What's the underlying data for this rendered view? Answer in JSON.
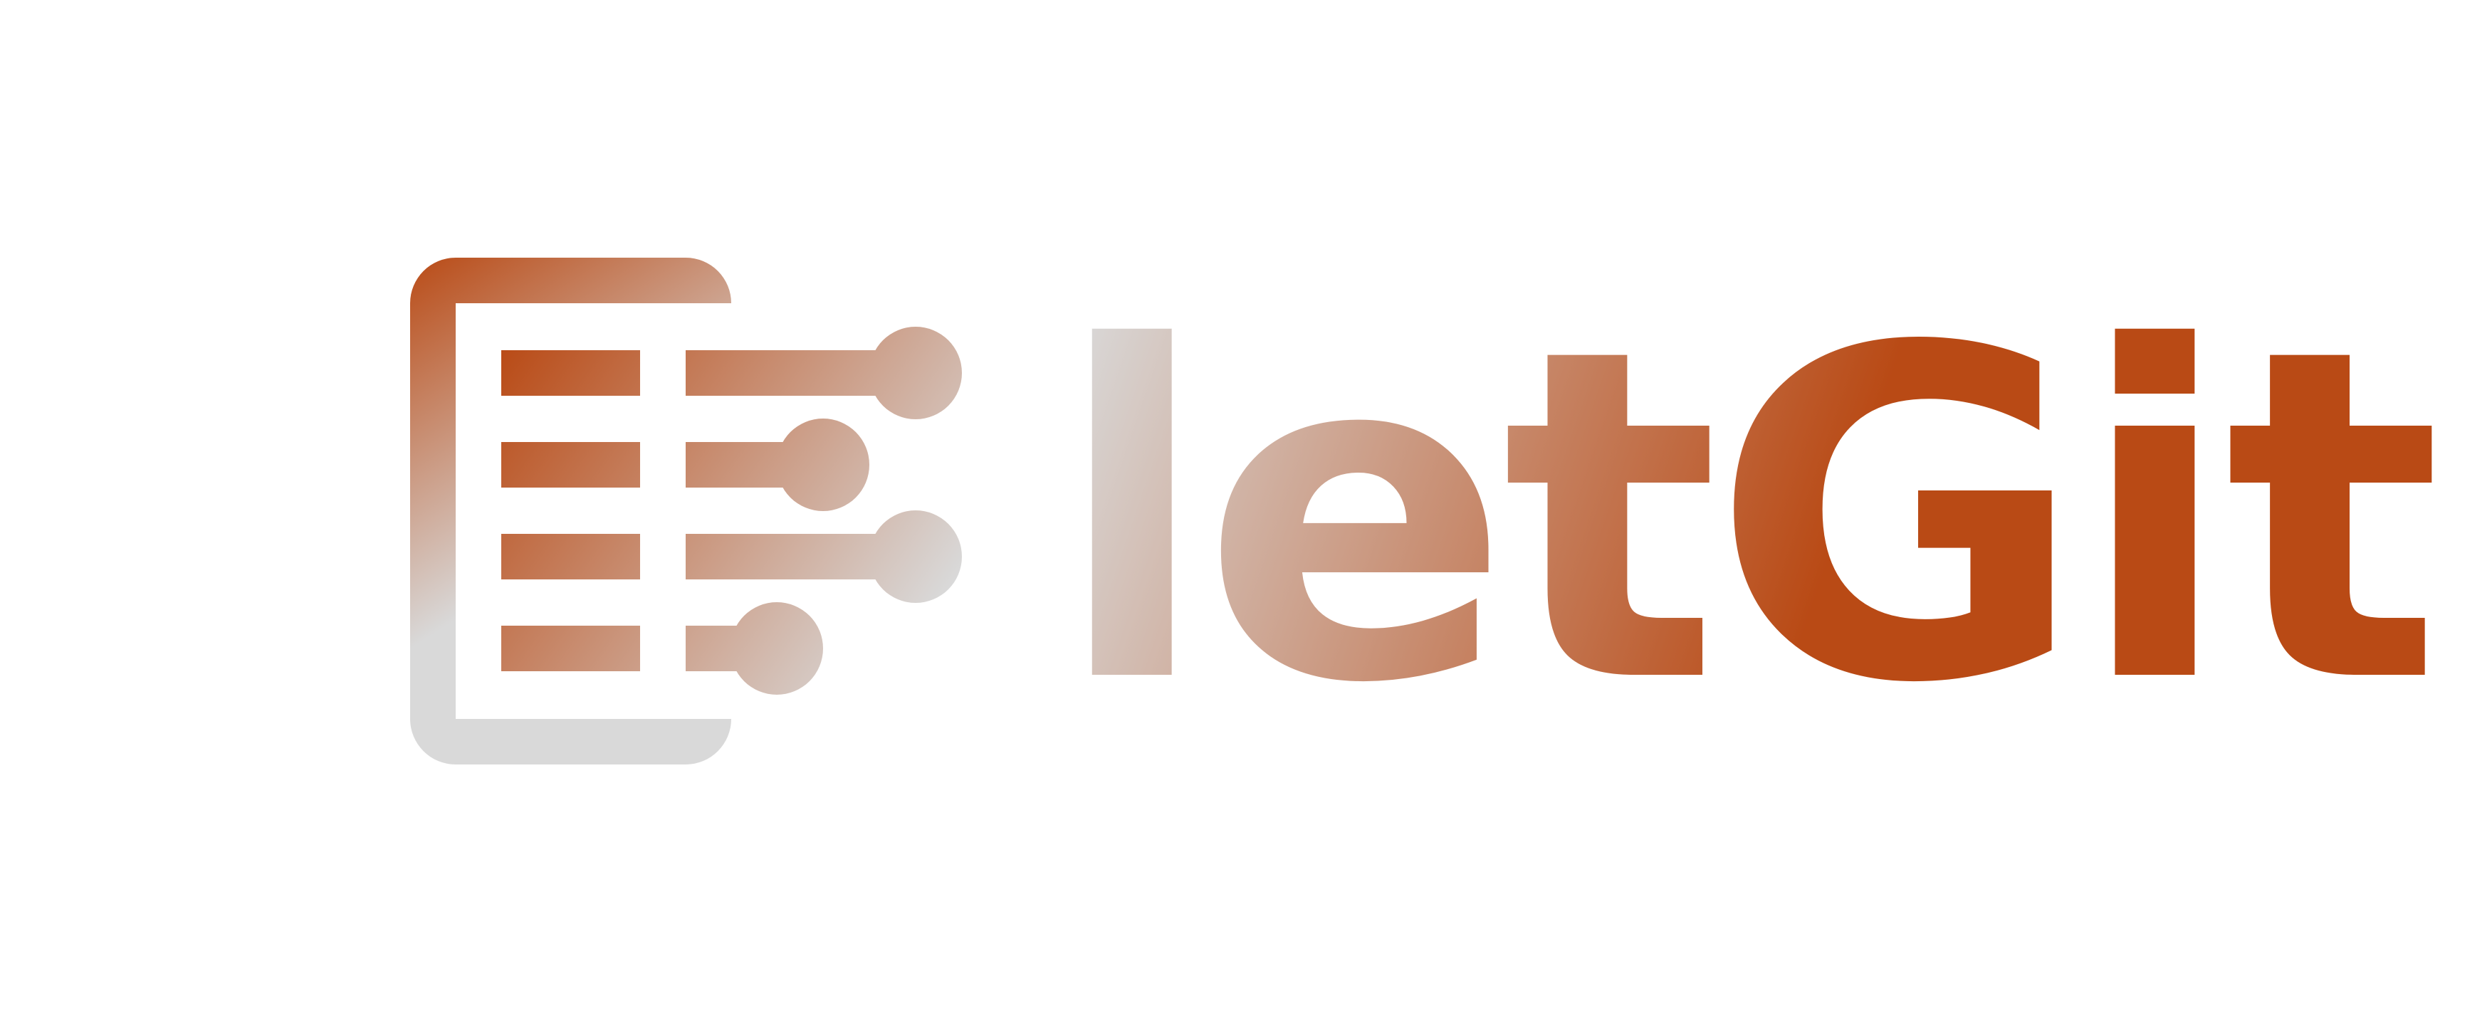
{
  "brand": {
    "name": "letGit",
    "colors": {
      "primary": "#B94A15",
      "accent_light": "#D9D9D9",
      "background": "#FFFFFF"
    }
  },
  "icon": {
    "name": "document-branches-icon"
  }
}
